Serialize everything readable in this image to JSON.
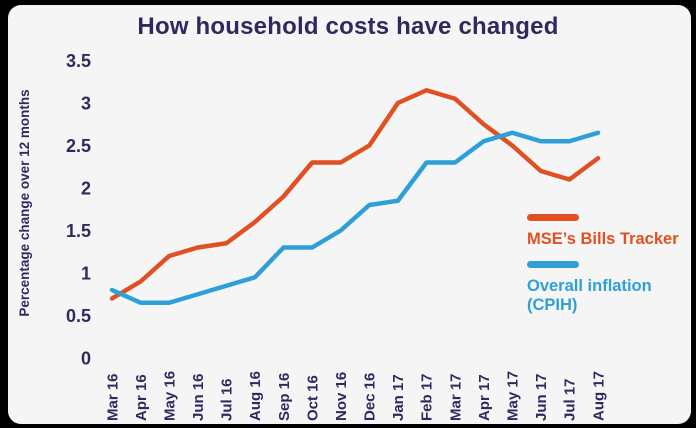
{
  "title": "How household costs have changed",
  "colors": {
    "background_outer": "#000000",
    "card_background": "#f5f5f6",
    "navy_text": "#2e2a5e",
    "orange": "#e05022",
    "blue": "#2fa0d7"
  },
  "y_axis_label": "Percentage change over 12 months",
  "legend": [
    {
      "label": "MSE’s Bills Tracker",
      "color": "#e05022"
    },
    {
      "label": "Overall inflation (CPIH)",
      "color": "#2fa0d7"
    }
  ],
  "chart_data": {
    "type": "line",
    "title": "How household costs have changed",
    "xlabel": "",
    "ylabel": "Percentage change over 12 months",
    "ylim": [
      0,
      3.5
    ],
    "yticks": [
      0,
      0.5,
      1,
      1.5,
      2,
      2.5,
      3,
      3.5
    ],
    "grid": false,
    "legend_position": "right",
    "categories": [
      "Mar 16",
      "Apr 16",
      "May 16",
      "Jun 16",
      "Jul 16",
      "Aug 16",
      "Sep 16",
      "Oct 16",
      "Nov 16",
      "Dec 16",
      "Jan 17",
      "Feb 17",
      "Mar 17",
      "Apr 17",
      "May 17",
      "Jun 17",
      "Jul 17",
      "Aug 17"
    ],
    "series": [
      {
        "name": "MSE’s Bills Tracker",
        "color": "#e05022",
        "values": [
          0.7,
          0.9,
          1.2,
          1.3,
          1.35,
          1.6,
          1.9,
          2.3,
          2.3,
          2.5,
          3.0,
          3.15,
          3.05,
          2.75,
          2.5,
          2.2,
          2.1,
          2.35
        ]
      },
      {
        "name": "Overall inflation (CPIH)",
        "color": "#2fa0d7",
        "values": [
          0.8,
          0.65,
          0.65,
          0.75,
          0.85,
          0.95,
          1.3,
          1.3,
          1.5,
          1.8,
          1.85,
          2.3,
          2.3,
          2.55,
          2.65,
          2.55,
          2.55,
          2.65
        ]
      }
    ]
  }
}
